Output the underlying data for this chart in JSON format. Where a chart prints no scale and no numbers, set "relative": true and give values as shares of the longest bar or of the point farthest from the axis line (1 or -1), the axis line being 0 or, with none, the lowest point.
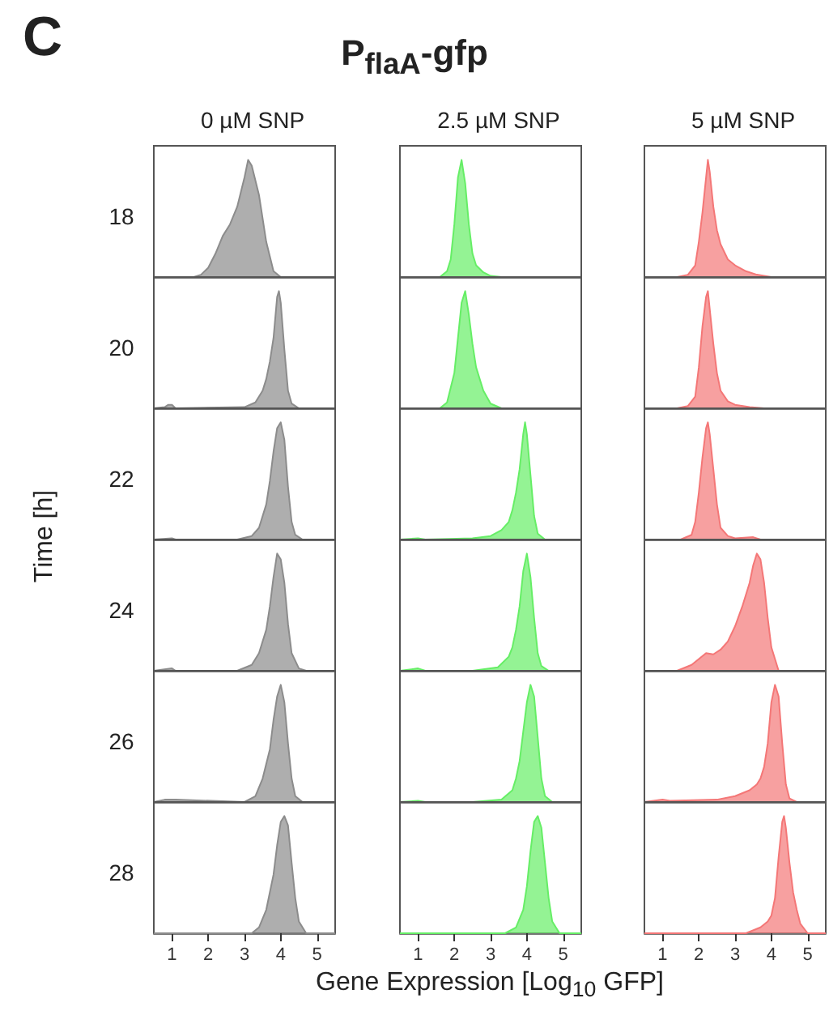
{
  "chart_data": [
    {
      "type": "other",
      "title": "P$_{flaA}$-gfp",
      "annotations": [
        "C"
      ],
      "xlabel": "Gene Expression [Log$_{10}$ GFP]",
      "ylabel": "Time [h]"
    },
    {
      "type": "area",
      "relative": true,
      "title": "0 µM SNP",
      "ylabel": "18",
      "color": "#8c8c8c",
      "xlim": [
        0.5,
        5.5
      ],
      "xticks": [
        1,
        2,
        3,
        4,
        5
      ],
      "tick_labels": false,
      "x": [
        0.5,
        1.6,
        1.8,
        2.0,
        2.2,
        2.4,
        2.6,
        2.8,
        3.0,
        3.1,
        3.2,
        3.4,
        3.6,
        3.8,
        4.0,
        5.5
      ],
      "values": [
        0,
        0,
        0.02,
        0.08,
        0.2,
        0.35,
        0.45,
        0.6,
        0.85,
        1,
        0.95,
        0.7,
        0.3,
        0.05,
        0,
        0
      ]
    },
    {
      "type": "area",
      "relative": true,
      "title": "2.5 µM SNP",
      "color": "#66ee66",
      "xlim": [
        0.5,
        5.5
      ],
      "xticks": [
        1,
        2,
        3,
        4,
        5
      ],
      "tick_labels": false,
      "x": [
        0.5,
        1.6,
        1.8,
        1.9,
        2.0,
        2.1,
        2.2,
        2.3,
        2.4,
        2.5,
        2.6,
        2.8,
        3.0,
        3.3,
        5.5
      ],
      "values": [
        0,
        0,
        0.05,
        0.15,
        0.45,
        0.85,
        1,
        0.8,
        0.45,
        0.2,
        0.1,
        0.04,
        0.01,
        0,
        0
      ]
    },
    {
      "type": "area",
      "relative": true,
      "title": "5 µM SNP",
      "color": "#f47777",
      "xlim": [
        0.5,
        5.5
      ],
      "xticks": [
        1,
        2,
        3,
        4,
        5
      ],
      "tick_labels": false,
      "x": [
        0.5,
        1.4,
        1.7,
        1.9,
        2.0,
        2.1,
        2.2,
        2.25,
        2.3,
        2.4,
        2.5,
        2.6,
        2.8,
        3.0,
        3.3,
        3.6,
        4.0,
        5.5
      ],
      "values": [
        0,
        0,
        0.02,
        0.1,
        0.3,
        0.55,
        0.85,
        1,
        0.9,
        0.6,
        0.4,
        0.28,
        0.15,
        0.1,
        0.05,
        0.02,
        0,
        0
      ]
    },
    {
      "type": "area",
      "relative": true,
      "ylabel": "20",
      "color": "#8c8c8c",
      "xlim": [
        0.5,
        5.5
      ],
      "xticks": [
        1,
        2,
        3,
        4,
        5
      ],
      "tick_labels": false,
      "x": [
        0.5,
        0.8,
        0.9,
        1.0,
        1.1,
        3.0,
        3.3,
        3.5,
        3.6,
        3.7,
        3.8,
        3.9,
        3.95,
        4.0,
        4.1,
        4.2,
        4.3,
        4.5,
        5.5
      ],
      "values": [
        0,
        0.01,
        0.03,
        0.03,
        0,
        0.01,
        0.05,
        0.15,
        0.25,
        0.4,
        0.6,
        0.95,
        1,
        0.9,
        0.5,
        0.15,
        0.04,
        0,
        0
      ]
    },
    {
      "type": "area",
      "relative": true,
      "color": "#66ee66",
      "xlim": [
        0.5,
        5.5
      ],
      "xticks": [
        1,
        2,
        3,
        4,
        5
      ],
      "tick_labels": false,
      "x": [
        0.5,
        1.6,
        1.8,
        2.0,
        2.1,
        2.2,
        2.3,
        2.4,
        2.5,
        2.6,
        2.8,
        3.0,
        3.3,
        5.5
      ],
      "values": [
        0,
        0,
        0.05,
        0.3,
        0.6,
        0.9,
        1,
        0.8,
        0.55,
        0.35,
        0.15,
        0.04,
        0,
        0
      ]
    },
    {
      "type": "area",
      "relative": true,
      "color": "#f47777",
      "xlim": [
        0.5,
        5.5
      ],
      "xticks": [
        1,
        2,
        3,
        4,
        5
      ],
      "tick_labels": false,
      "x": [
        0.5,
        1.4,
        1.7,
        1.9,
        2.0,
        2.1,
        2.2,
        2.25,
        2.3,
        2.4,
        2.5,
        2.6,
        2.8,
        3.0,
        3.4,
        3.8,
        5.5
      ],
      "values": [
        0,
        0,
        0.02,
        0.1,
        0.35,
        0.7,
        0.95,
        1,
        0.85,
        0.55,
        0.3,
        0.15,
        0.06,
        0.03,
        0.01,
        0,
        0
      ]
    },
    {
      "type": "area",
      "relative": true,
      "ylabel": "22",
      "color": "#8c8c8c",
      "xlim": [
        0.5,
        5.5
      ],
      "xticks": [
        1,
        2,
        3,
        4,
        5
      ],
      "tick_labels": false,
      "x": [
        0.5,
        1.0,
        1.1,
        2.8,
        3.2,
        3.4,
        3.6,
        3.7,
        3.8,
        3.9,
        4.0,
        4.1,
        4.2,
        4.3,
        4.4,
        4.6,
        5.5
      ],
      "values": [
        0,
        0.01,
        0,
        0,
        0.03,
        0.1,
        0.3,
        0.5,
        0.75,
        0.95,
        1,
        0.85,
        0.45,
        0.15,
        0.04,
        0,
        0
      ]
    },
    {
      "type": "area",
      "relative": true,
      "color": "#66ee66",
      "xlim": [
        0.5,
        5.5
      ],
      "xticks": [
        1,
        2,
        3,
        4,
        5
      ],
      "tick_labels": false,
      "x": [
        0.5,
        1.0,
        1.2,
        2.5,
        3.0,
        3.3,
        3.5,
        3.6,
        3.7,
        3.8,
        3.9,
        3.95,
        4.0,
        4.1,
        4.2,
        4.3,
        4.5,
        5.5
      ],
      "values": [
        0,
        0.01,
        0,
        0.01,
        0.03,
        0.08,
        0.15,
        0.25,
        0.4,
        0.6,
        0.9,
        1,
        0.9,
        0.55,
        0.2,
        0.05,
        0,
        0
      ]
    },
    {
      "type": "area",
      "relative": true,
      "color": "#f47777",
      "xlim": [
        0.5,
        5.5
      ],
      "xticks": [
        1,
        2,
        3,
        4,
        5
      ],
      "tick_labels": false,
      "x": [
        0.5,
        1.5,
        1.8,
        1.9,
        2.0,
        2.1,
        2.2,
        2.25,
        2.3,
        2.4,
        2.5,
        2.6,
        2.8,
        3.0,
        3.5,
        3.7,
        5.5
      ],
      "values": [
        0,
        0,
        0.04,
        0.15,
        0.4,
        0.7,
        0.95,
        1,
        0.9,
        0.6,
        0.3,
        0.1,
        0.03,
        0.01,
        0.02,
        0,
        0
      ]
    },
    {
      "type": "area",
      "relative": true,
      "ylabel": "24",
      "color": "#8c8c8c",
      "xlim": [
        0.5,
        5.5
      ],
      "xticks": [
        1,
        2,
        3,
        4,
        5
      ],
      "tick_labels": false,
      "x": [
        0.5,
        1.0,
        1.1,
        2.8,
        3.2,
        3.4,
        3.6,
        3.7,
        3.8,
        3.9,
        4.0,
        4.1,
        4.2,
        4.3,
        4.5,
        4.7,
        5.5
      ],
      "values": [
        0,
        0.02,
        0,
        0,
        0.05,
        0.15,
        0.35,
        0.55,
        0.8,
        1,
        0.95,
        0.75,
        0.4,
        0.15,
        0.02,
        0,
        0
      ]
    },
    {
      "type": "area",
      "relative": true,
      "color": "#66ee66",
      "xlim": [
        0.5,
        5.5
      ],
      "xticks": [
        1,
        2,
        3,
        4,
        5
      ],
      "tick_labels": false,
      "x": [
        0.5,
        1.0,
        1.2,
        2.5,
        3.2,
        3.5,
        3.6,
        3.7,
        3.8,
        3.9,
        4.0,
        4.1,
        4.2,
        4.3,
        4.4,
        4.6,
        5.5
      ],
      "values": [
        0,
        0.02,
        0,
        0,
        0.03,
        0.12,
        0.2,
        0.35,
        0.55,
        0.85,
        1,
        0.8,
        0.45,
        0.15,
        0.04,
        0,
        0
      ]
    },
    {
      "type": "area",
      "relative": true,
      "color": "#f47777",
      "xlim": [
        0.5,
        5.5
      ],
      "xticks": [
        1,
        2,
        3,
        4,
        5
      ],
      "tick_labels": false,
      "x": [
        0.5,
        1.4,
        1.8,
        2.0,
        2.2,
        2.4,
        2.6,
        2.8,
        3.0,
        3.2,
        3.4,
        3.5,
        3.6,
        3.7,
        3.8,
        3.9,
        4.0,
        4.2,
        5.5
      ],
      "values": [
        0,
        0,
        0.05,
        0.1,
        0.15,
        0.14,
        0.18,
        0.25,
        0.38,
        0.55,
        0.75,
        0.9,
        1,
        0.95,
        0.75,
        0.45,
        0.2,
        0,
        0
      ]
    },
    {
      "type": "area",
      "relative": true,
      "ylabel": "26",
      "color": "#8c8c8c",
      "xlim": [
        0.5,
        5.5
      ],
      "xticks": [
        1,
        2,
        3,
        4,
        5
      ],
      "tick_labels": false,
      "x": [
        0.5,
        0.8,
        1.1,
        3.0,
        3.3,
        3.5,
        3.7,
        3.8,
        3.9,
        4.0,
        4.1,
        4.2,
        4.3,
        4.4,
        4.6,
        5.5
      ],
      "values": [
        0,
        0.02,
        0.02,
        0,
        0.05,
        0.2,
        0.45,
        0.7,
        0.9,
        1,
        0.85,
        0.5,
        0.2,
        0.05,
        0,
        0
      ]
    },
    {
      "type": "area",
      "relative": true,
      "color": "#66ee66",
      "xlim": [
        0.5,
        5.5
      ],
      "xticks": [
        1,
        2,
        3,
        4,
        5
      ],
      "tick_labels": false,
      "x": [
        0.5,
        1.0,
        1.2,
        2.5,
        3.3,
        3.6,
        3.7,
        3.8,
        3.9,
        4.0,
        4.1,
        4.2,
        4.3,
        4.4,
        4.5,
        4.7,
        5.5
      ],
      "values": [
        0,
        0.01,
        0,
        0,
        0.02,
        0.1,
        0.2,
        0.35,
        0.6,
        0.85,
        1,
        0.9,
        0.55,
        0.2,
        0.05,
        0,
        0
      ]
    },
    {
      "type": "area",
      "relative": true,
      "color": "#f47777",
      "xlim": [
        0.5,
        5.5
      ],
      "xticks": [
        1,
        2,
        3,
        4,
        5
      ],
      "tick_labels": false,
      "x": [
        0.5,
        1.0,
        1.2,
        2.5,
        3.0,
        3.4,
        3.6,
        3.7,
        3.8,
        3.9,
        4.0,
        4.1,
        4.2,
        4.3,
        4.4,
        4.5,
        4.7,
        5.5
      ],
      "values": [
        0,
        0.02,
        0.01,
        0.02,
        0.05,
        0.1,
        0.15,
        0.2,
        0.3,
        0.5,
        0.85,
        1,
        0.9,
        0.5,
        0.15,
        0.03,
        0,
        0
      ]
    },
    {
      "type": "area",
      "relative": true,
      "ylabel": "28",
      "color": "#8c8c8c",
      "xlim": [
        0.5,
        5.5
      ],
      "xticks": [
        1,
        2,
        3,
        4,
        5
      ],
      "tick_labels": "x",
      "x": [
        0.5,
        3.2,
        3.4,
        3.6,
        3.8,
        3.9,
        4.0,
        4.1,
        4.2,
        4.3,
        4.4,
        4.5,
        4.7,
        5.5
      ],
      "values": [
        0,
        0,
        0.05,
        0.2,
        0.5,
        0.75,
        0.95,
        1,
        0.92,
        0.6,
        0.3,
        0.1,
        0,
        0
      ]
    },
    {
      "type": "area",
      "relative": true,
      "color": "#66ee66",
      "xlim": [
        0.5,
        5.5
      ],
      "xticks": [
        1,
        2,
        3,
        4,
        5
      ],
      "tick_labels": "x",
      "x": [
        0.5,
        3.4,
        3.7,
        3.9,
        4.0,
        4.1,
        4.2,
        4.3,
        4.4,
        4.5,
        4.6,
        4.7,
        4.9,
        5.5
      ],
      "values": [
        0,
        0,
        0.05,
        0.2,
        0.4,
        0.7,
        0.95,
        1,
        0.9,
        0.6,
        0.3,
        0.1,
        0,
        0
      ]
    },
    {
      "type": "area",
      "relative": true,
      "color": "#f47777",
      "xlim": [
        0.5,
        5.5
      ],
      "xticks": [
        1,
        2,
        3,
        4,
        5
      ],
      "tick_labels": "x",
      "x": [
        0.5,
        3.3,
        3.7,
        3.9,
        4.0,
        4.1,
        4.2,
        4.3,
        4.35,
        4.4,
        4.5,
        4.6,
        4.7,
        4.8,
        5.0,
        5.5
      ],
      "values": [
        0,
        0,
        0.05,
        0.1,
        0.15,
        0.3,
        0.65,
        0.95,
        1,
        0.9,
        0.6,
        0.35,
        0.2,
        0.08,
        0,
        0
      ]
    }
  ]
}
